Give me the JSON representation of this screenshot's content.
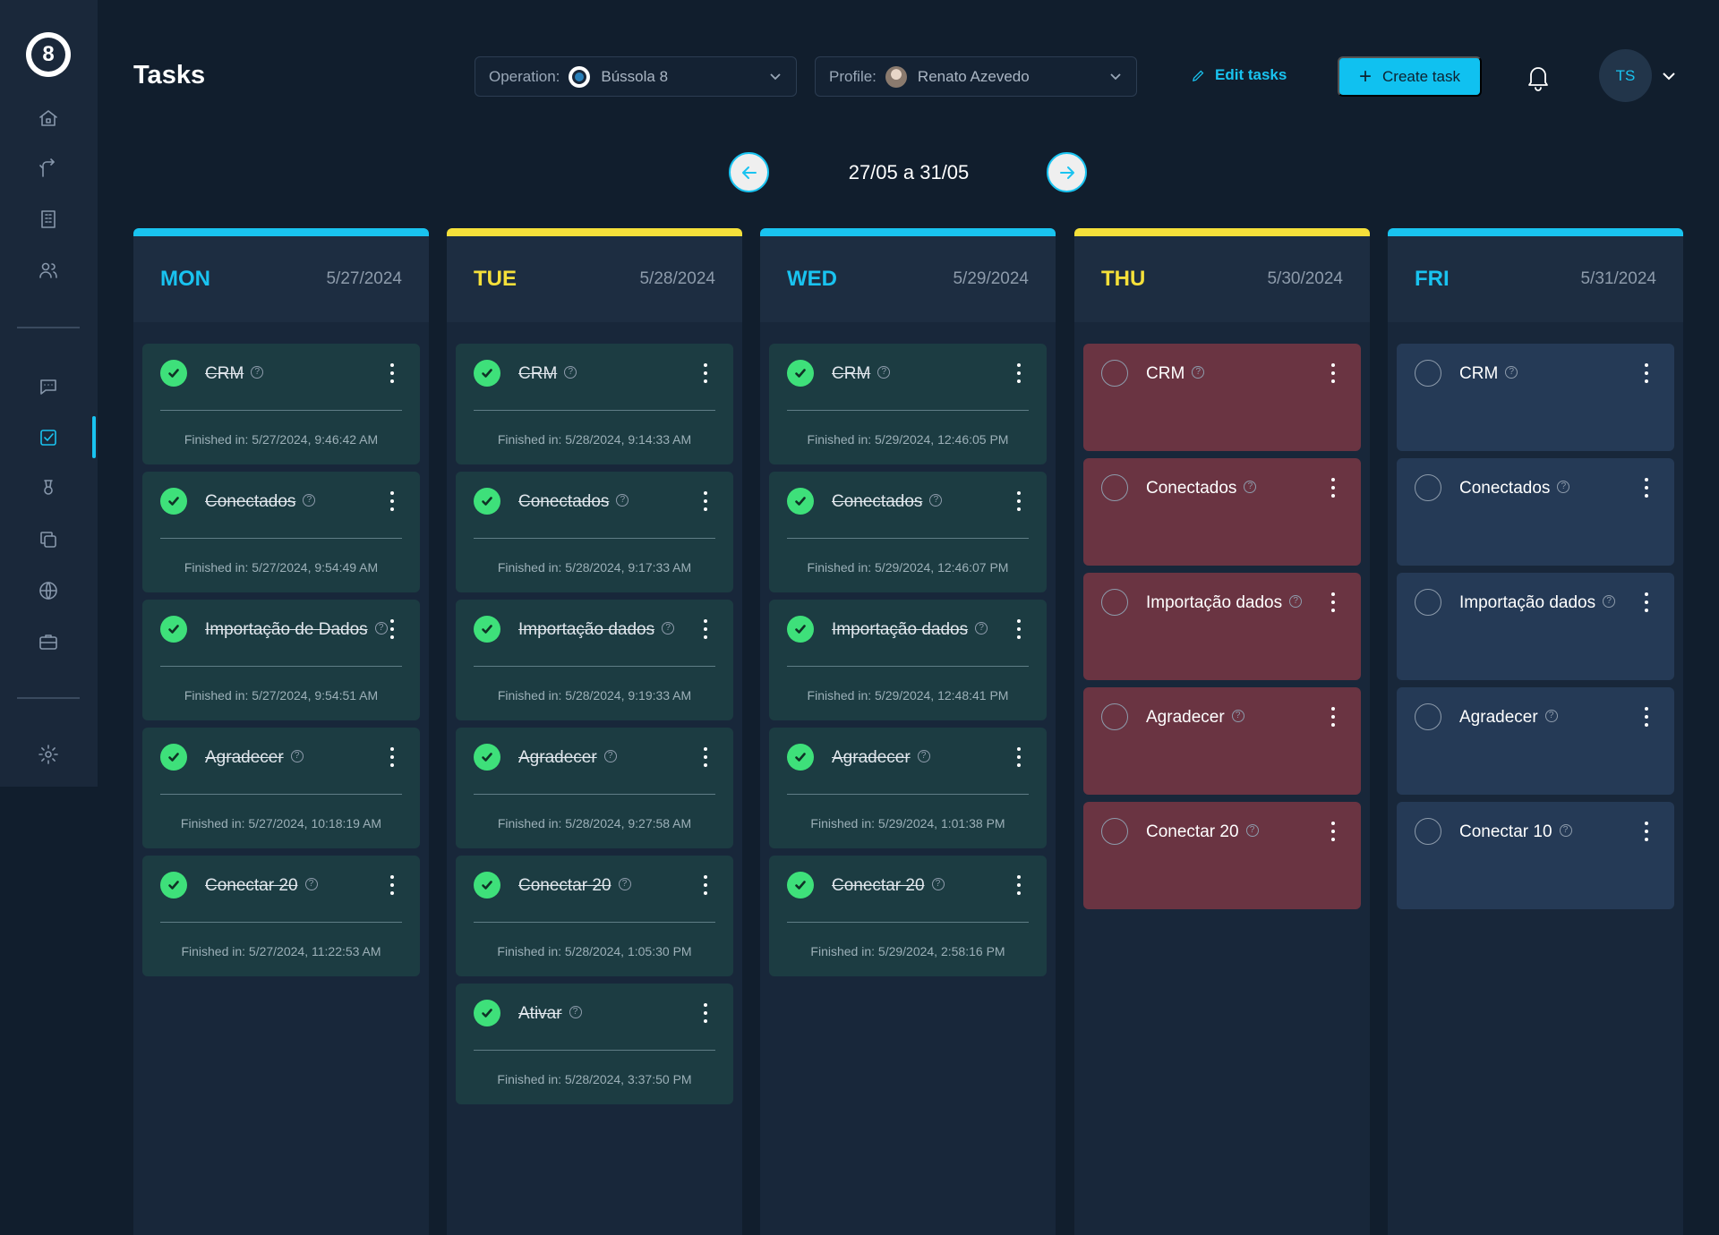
{
  "sidebar": {
    "logo_text": "8",
    "icons": [
      "home-icon",
      "route-icon",
      "building-icon",
      "users-icon",
      "chat-icon",
      "tasks-icon",
      "award-icon",
      "copy-icon",
      "globe-icon",
      "briefcase-icon",
      "settings-icon"
    ],
    "active": "tasks-icon"
  },
  "header": {
    "title": "Tasks",
    "operation": {
      "label": "Operation:",
      "value": "Bússola 8"
    },
    "profile": {
      "label": "Profile:",
      "value": "Renato Azevedo"
    },
    "edit_label": "Edit tasks",
    "create_label": "Create task",
    "user_initials": "TS"
  },
  "week": {
    "range": "27/05 a 31/05"
  },
  "colors": {
    "accent_blue": "#19c3f0",
    "accent_yellow": "#f5e03a",
    "done": "#1c3c42",
    "late": "#6a3442",
    "todo": "#253a56"
  },
  "columns": [
    {
      "day": "MON",
      "date": "5/27/2024",
      "accent": "#19c3f0",
      "tasks": [
        {
          "title": "CRM",
          "status": "done",
          "finished": "Finished in: 5/27/2024, 9:46:42 AM"
        },
        {
          "title": "Conectados",
          "status": "done",
          "finished": "Finished in: 5/27/2024, 9:54:49 AM"
        },
        {
          "title": "Importação de Dados",
          "status": "done",
          "finished": "Finished in: 5/27/2024, 9:54:51 AM"
        },
        {
          "title": "Agradecer",
          "status": "done",
          "finished": "Finished in: 5/27/2024, 10:18:19 AM"
        },
        {
          "title": "Conectar 20",
          "status": "done",
          "finished": "Finished in: 5/27/2024, 11:22:53 AM"
        }
      ]
    },
    {
      "day": "TUE",
      "date": "5/28/2024",
      "accent": "#f5e03a",
      "tasks": [
        {
          "title": "CRM",
          "status": "done",
          "finished": "Finished in: 5/28/2024, 9:14:33 AM"
        },
        {
          "title": "Conectados",
          "status": "done",
          "finished": "Finished in: 5/28/2024, 9:17:33 AM"
        },
        {
          "title": "Importação dados",
          "status": "done",
          "finished": "Finished in: 5/28/2024, 9:19:33 AM"
        },
        {
          "title": "Agradecer",
          "status": "done",
          "finished": "Finished in: 5/28/2024, 9:27:58 AM"
        },
        {
          "title": "Conectar 20",
          "status": "done",
          "finished": "Finished in: 5/28/2024, 1:05:30 PM"
        },
        {
          "title": "Ativar",
          "status": "done",
          "finished": "Finished in: 5/28/2024, 3:37:50 PM"
        }
      ]
    },
    {
      "day": "WED",
      "date": "5/29/2024",
      "accent": "#19c3f0",
      "tasks": [
        {
          "title": "CRM",
          "status": "done",
          "finished": "Finished in: 5/29/2024, 12:46:05 PM"
        },
        {
          "title": "Conectados",
          "status": "done",
          "finished": "Finished in: 5/29/2024, 12:46:07 PM"
        },
        {
          "title": "Importação dados",
          "status": "done",
          "finished": "Finished in: 5/29/2024, 12:48:41 PM"
        },
        {
          "title": "Agradecer",
          "status": "done",
          "finished": "Finished in: 5/29/2024, 1:01:38 PM"
        },
        {
          "title": "Conectar 20",
          "status": "done",
          "finished": "Finished in: 5/29/2024, 2:58:16 PM"
        }
      ]
    },
    {
      "day": "THU",
      "date": "5/30/2024",
      "accent": "#f5e03a",
      "tasks": [
        {
          "title": "CRM",
          "status": "late"
        },
        {
          "title": "Conectados",
          "status": "late"
        },
        {
          "title": "Importação dados",
          "status": "late"
        },
        {
          "title": "Agradecer",
          "status": "late"
        },
        {
          "title": "Conectar 20",
          "status": "late"
        }
      ]
    },
    {
      "day": "FRI",
      "date": "5/31/2024",
      "accent": "#19c3f0",
      "tasks": [
        {
          "title": "CRM",
          "status": "todo"
        },
        {
          "title": "Conectados",
          "status": "todo"
        },
        {
          "title": "Importação dados",
          "status": "todo"
        },
        {
          "title": "Agradecer",
          "status": "todo"
        },
        {
          "title": "Conectar 10",
          "status": "todo"
        }
      ]
    }
  ]
}
